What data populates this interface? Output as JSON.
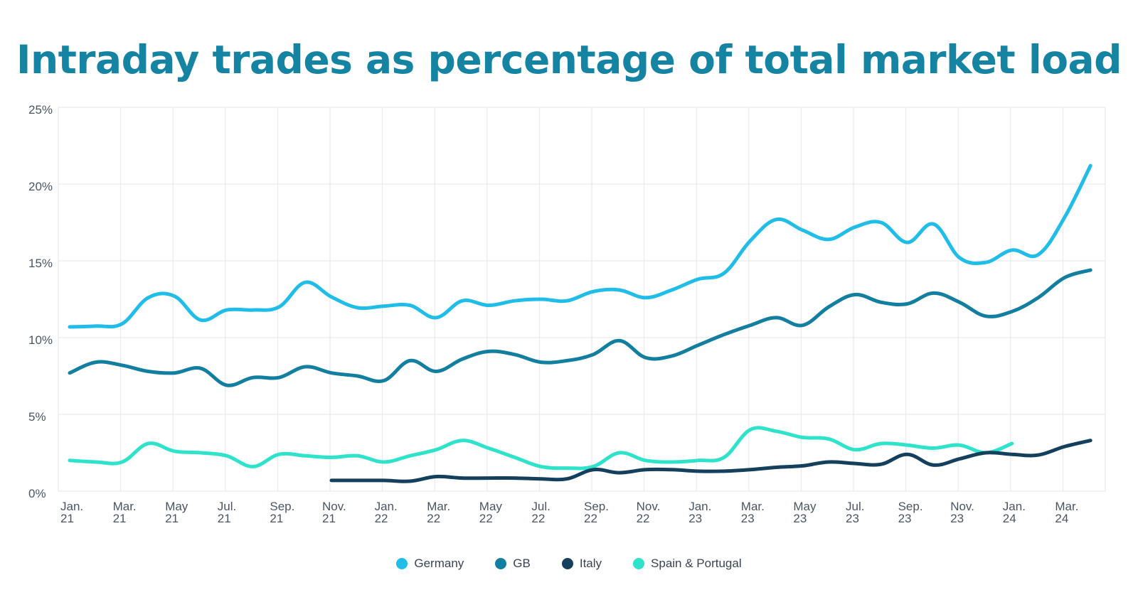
{
  "chart_data": {
    "type": "line",
    "title": "Intraday trades as percentage of total market load",
    "xlabel": "",
    "ylabel": "",
    "ylim": [
      0,
      25
    ],
    "y_ticks": [
      "0%",
      "5%",
      "10%",
      "15%",
      "20%",
      "25%"
    ],
    "grid": true,
    "legend_position": "bottom",
    "x_tick_labels": [
      [
        "Jan.",
        "21"
      ],
      [
        "Mar.",
        "21"
      ],
      [
        "May",
        "21"
      ],
      [
        "Jul.",
        "21"
      ],
      [
        "Sep.",
        "21"
      ],
      [
        "Nov.",
        "21"
      ],
      [
        "Jan.",
        "22"
      ],
      [
        "Mar.",
        "22"
      ],
      [
        "May",
        "22"
      ],
      [
        "Jul.",
        "22"
      ],
      [
        "Sep.",
        "22"
      ],
      [
        "Nov.",
        "22"
      ],
      [
        "Jan.",
        "23"
      ],
      [
        "Mar.",
        "23"
      ],
      [
        "May",
        "23"
      ],
      [
        "Jul.",
        "23"
      ],
      [
        "Sep.",
        "23"
      ],
      [
        "Nov.",
        "23"
      ],
      [
        "Jan.",
        "24"
      ],
      [
        "Mar.",
        "24"
      ]
    ],
    "x": [
      "2021-01",
      "2021-02",
      "2021-03",
      "2021-04",
      "2021-05",
      "2021-06",
      "2021-07",
      "2021-08",
      "2021-09",
      "2021-10",
      "2021-11",
      "2021-12",
      "2022-01",
      "2022-02",
      "2022-03",
      "2022-04",
      "2022-05",
      "2022-06",
      "2022-07",
      "2022-08",
      "2022-09",
      "2022-10",
      "2022-11",
      "2022-12",
      "2023-01",
      "2023-02",
      "2023-03",
      "2023-04",
      "2023-05",
      "2023-06",
      "2023-07",
      "2023-08",
      "2023-09",
      "2023-10",
      "2023-11",
      "2023-12",
      "2024-01",
      "2024-02",
      "2024-03",
      "2024-04"
    ],
    "series": [
      {
        "name": "Germany",
        "color": "#1fbde8",
        "values": [
          10.7,
          10.75,
          10.9,
          12.6,
          12.7,
          11.15,
          11.8,
          11.8,
          12.0,
          13.6,
          12.65,
          11.95,
          12.05,
          12.1,
          11.3,
          12.4,
          12.1,
          12.4,
          12.5,
          12.4,
          13.0,
          13.1,
          12.6,
          13.1,
          13.8,
          14.2,
          16.3,
          17.7,
          17.0,
          16.4,
          17.2,
          17.5,
          16.2,
          17.4,
          15.2,
          14.9,
          15.7,
          15.4,
          17.8,
          21.2
        ]
      },
      {
        "name": "GB",
        "color": "#127fa0",
        "values": [
          7.7,
          8.4,
          8.2,
          7.8,
          7.7,
          8.0,
          6.9,
          7.4,
          7.4,
          8.1,
          7.7,
          7.5,
          7.2,
          8.5,
          7.8,
          8.6,
          9.1,
          8.9,
          8.4,
          8.5,
          8.9,
          9.8,
          8.7,
          8.8,
          9.5,
          10.2,
          10.8,
          11.3,
          10.8,
          12.0,
          12.8,
          12.3,
          12.2,
          12.9,
          12.3,
          11.4,
          11.7,
          12.6,
          13.9,
          14.4
        ]
      },
      {
        "name": "Italy",
        "color": "#14405e",
        "values": [
          null,
          null,
          null,
          null,
          null,
          null,
          null,
          null,
          null,
          null,
          0.7,
          0.7,
          0.7,
          0.65,
          0.95,
          0.85,
          0.85,
          0.85,
          0.8,
          0.8,
          1.4,
          1.2,
          1.4,
          1.4,
          1.3,
          1.3,
          1.4,
          1.55,
          1.65,
          1.9,
          1.8,
          1.75,
          2.4,
          1.7,
          2.1,
          2.5,
          2.4,
          2.35,
          2.9,
          3.3
        ]
      },
      {
        "name": "Spain & Portugal",
        "color": "#2fe3cb",
        "values": [
          2.0,
          1.9,
          1.9,
          3.1,
          2.6,
          2.5,
          2.3,
          1.6,
          2.4,
          2.3,
          2.2,
          2.3,
          1.9,
          2.3,
          2.7,
          3.3,
          2.8,
          2.2,
          1.6,
          1.5,
          1.6,
          2.5,
          2.0,
          1.9,
          2.0,
          2.2,
          4.0,
          3.9,
          3.5,
          3.4,
          2.7,
          3.1,
          3.0,
          2.8,
          3.0,
          2.5,
          3.1,
          null,
          null,
          null
        ]
      }
    ]
  }
}
